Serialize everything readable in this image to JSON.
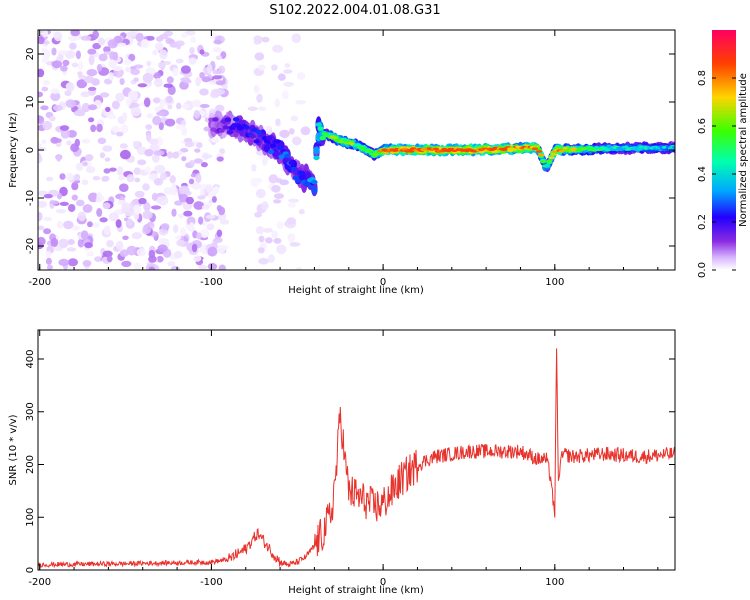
{
  "figure_title": "S102.2022.004.01.08.G31",
  "colors": {
    "snr_line": "#e8322c",
    "colormap": [
      "#ffffff",
      "#d9b8ff",
      "#8a2be2",
      "#2200ff",
      "#00a8ff",
      "#00ffb0",
      "#3cff00",
      "#ffd400",
      "#ff4000",
      "#ff0060"
    ]
  },
  "chart_data": [
    {
      "type": "heatmap",
      "title": "S102.2022.004.01.08.G31",
      "xlabel": "Height of straight line (km)",
      "ylabel": "Frequency (Hz)",
      "xlim": [
        -201,
        170
      ],
      "ylim": [
        -25,
        25
      ],
      "xticks": [
        "-200",
        "-100",
        "0",
        "100"
      ],
      "yticks": [
        "-20",
        "-10",
        "0",
        "10",
        "20"
      ],
      "colorbar": {
        "label": "Normalized spectral amplitude",
        "range": [
          0,
          1
        ],
        "ticks": [
          "0.0",
          "0.2",
          "0.4",
          "0.6",
          "0.8"
        ]
      },
      "signal_track": [
        {
          "x": -100,
          "freq": 5,
          "amp": 0.2
        },
        {
          "x": -85,
          "freq": 5,
          "amp": 0.3
        },
        {
          "x": -75,
          "freq": 3,
          "amp": 0.3
        },
        {
          "x": -60,
          "freq": 0,
          "amp": 0.35
        },
        {
          "x": -50,
          "freq": -5,
          "amp": 0.35
        },
        {
          "x": -40,
          "freq": -7,
          "amp": 0.4
        },
        {
          "x": -38,
          "freq": 4,
          "amp": 0.5
        },
        {
          "x": -25,
          "freq": 2,
          "amp": 0.7
        },
        {
          "x": -15,
          "freq": 1,
          "amp": 0.6
        },
        {
          "x": -5,
          "freq": -1,
          "amp": 0.6
        },
        {
          "x": 0,
          "freq": 0,
          "amp": 0.8
        },
        {
          "x": 20,
          "freq": 0,
          "amp": 0.9
        },
        {
          "x": 50,
          "freq": 0,
          "amp": 0.9
        },
        {
          "x": 90,
          "freq": 0.5,
          "amp": 0.8
        },
        {
          "x": 95,
          "freq": -4,
          "amp": 0.5
        },
        {
          "x": 100,
          "freq": 0,
          "amp": 0.8
        },
        {
          "x": 130,
          "freq": 0.3,
          "amp": 0.5
        },
        {
          "x": 170,
          "freq": 0.5,
          "amp": 0.45
        }
      ]
    },
    {
      "type": "line",
      "xlabel": "Height of straight line (km)",
      "ylabel": "SNR (10 * v/v)",
      "xlim": [
        -201,
        170
      ],
      "ylim": [
        0,
        455
      ],
      "xticks": [
        "-200",
        "-100",
        "0",
        "100"
      ],
      "yticks": [
        "0",
        "100",
        "200",
        "300",
        "400"
      ],
      "series": [
        {
          "x": [
            -201,
            -150,
            -100,
            -90,
            -80,
            -73,
            -65,
            -60,
            -55,
            -50,
            -45,
            -40,
            -35,
            -30,
            -27,
            -25,
            -22,
            -20,
            -15,
            -10,
            -5,
            0,
            10,
            20,
            30,
            50,
            80,
            90,
            95,
            98,
            100,
            101,
            102,
            103,
            105,
            110,
            130,
            150,
            170
          ],
          "y": [
            10,
            12,
            15,
            20,
            40,
            70,
            35,
            15,
            10,
            15,
            25,
            45,
            70,
            110,
            200,
            300,
            200,
            150,
            140,
            130,
            120,
            125,
            170,
            200,
            215,
            225,
            225,
            210,
            210,
            170,
            90,
            445,
            160,
            200,
            220,
            215,
            220,
            215,
            220
          ]
        }
      ]
    }
  ]
}
